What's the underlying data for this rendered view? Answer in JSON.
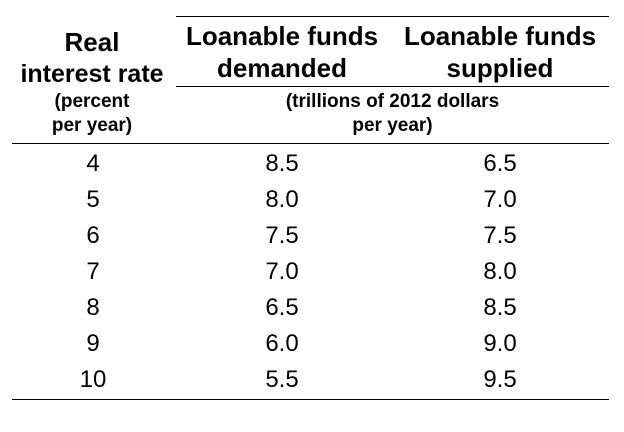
{
  "table": {
    "headers": {
      "rate_line1": "Real",
      "rate_line2": "interest rate",
      "rate_unit_line1": "(percent",
      "rate_unit_line2": "per year)",
      "demanded_line1": "Loanable funds",
      "demanded_line2": "demanded",
      "supplied_line1": "Loanable funds",
      "supplied_line2": "supplied",
      "funds_unit_line1": "(trillions of 2012 dollars",
      "funds_unit_line2": "per year)"
    },
    "rows": [
      {
        "rate": "4",
        "demanded": "8.5",
        "supplied": "6.5"
      },
      {
        "rate": "5",
        "demanded": "8.0",
        "supplied": "7.0"
      },
      {
        "rate": "6",
        "demanded": "7.5",
        "supplied": "7.5"
      },
      {
        "rate": "7",
        "demanded": "7.0",
        "supplied": "8.0"
      },
      {
        "rate": "8",
        "demanded": "6.5",
        "supplied": "8.5"
      },
      {
        "rate": "9",
        "demanded": "6.0",
        "supplied": "9.0"
      },
      {
        "rate": "10",
        "demanded": "5.5",
        "supplied": "9.5"
      }
    ]
  }
}
